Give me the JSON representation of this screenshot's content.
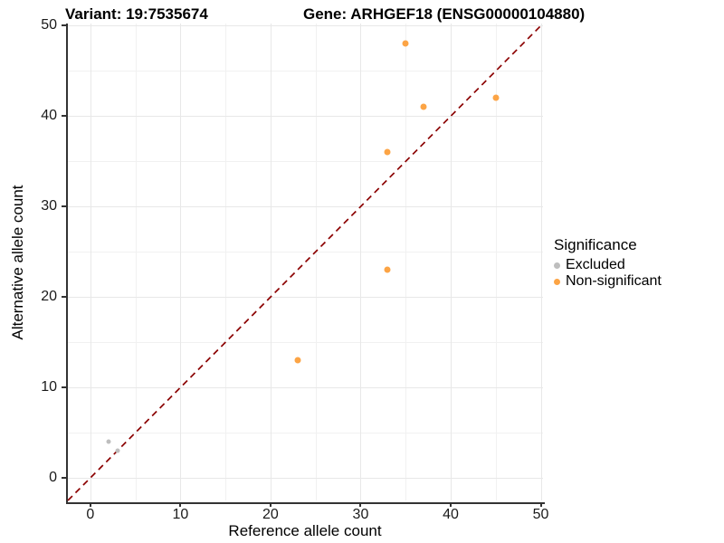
{
  "titles": {
    "variant": "Variant: 19:7535674",
    "gene": "Gene: ARHGEF18 (ENSG00000104880)"
  },
  "chart_data": {
    "type": "scatter",
    "xlabel": "Reference allele count",
    "ylabel": "Alternative allele count",
    "xlim": [
      -2.5,
      50.25
    ],
    "ylim": [
      -2.5,
      50.25
    ],
    "x_ticks": [
      0,
      10,
      20,
      30,
      40,
      50
    ],
    "y_ticks": [
      0,
      10,
      20,
      30,
      40,
      50
    ],
    "x_minor": [
      5,
      15,
      25,
      35,
      45
    ],
    "y_minor": [
      5,
      15,
      25,
      35,
      45
    ],
    "grid": true,
    "series": [
      {
        "name": "Excluded",
        "color": "#bebebe",
        "marker_size": 5,
        "points": [
          [
            2,
            4
          ],
          [
            3,
            3
          ]
        ]
      },
      {
        "name": "Non-significant",
        "color": "#fca445",
        "marker_size": 7,
        "points": [
          [
            23,
            13
          ],
          [
            33,
            23
          ],
          [
            33,
            36
          ],
          [
            35,
            48
          ],
          [
            37,
            41
          ],
          [
            45,
            42
          ]
        ]
      }
    ],
    "identity_line": {
      "equation": "y = x",
      "style": "dashed",
      "color": "#8b0000"
    },
    "legend_position": "right"
  },
  "legend": {
    "title": "Significance",
    "items": [
      {
        "label": "Excluded",
        "color": "#bebebe"
      },
      {
        "label": "Non-significant",
        "color": "#fca445"
      }
    ]
  },
  "style_colors": {
    "axis_line": "#333333",
    "grid_major": "#e8e8e8",
    "grid_minor": "#f1f1f1"
  }
}
